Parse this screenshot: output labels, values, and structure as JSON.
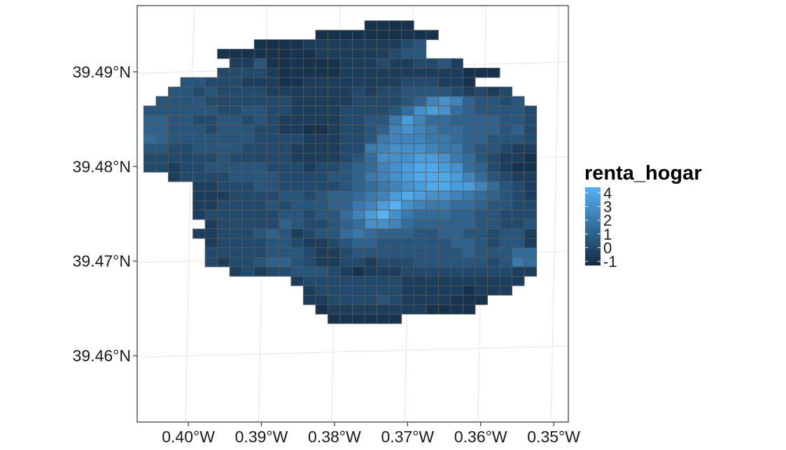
{
  "chart_data": {
    "type": "heatmap",
    "title": "",
    "xlabel": "",
    "ylabel": "",
    "x_ticks": [
      "0.40°W",
      "0.39°W",
      "0.38°W",
      "0.37°W",
      "0.36°W",
      "0.35°W"
    ],
    "x_tick_values": [
      -0.4,
      -0.39,
      -0.38,
      -0.37,
      -0.36,
      -0.35
    ],
    "y_ticks": [
      "39.46°N",
      "39.47°N",
      "39.48°N",
      "39.49°N"
    ],
    "y_tick_values": [
      39.46,
      39.47,
      39.48,
      39.49
    ],
    "xlim": [
      -0.407,
      -0.348
    ],
    "ylim": [
      39.453,
      39.497
    ],
    "grid": true,
    "legend": {
      "title": "renta_hogar",
      "position": "right",
      "labels": [
        "4",
        "3",
        "2",
        "1",
        "0",
        "-1"
      ],
      "values": [
        4,
        3,
        2,
        1,
        0,
        -1
      ],
      "range": [
        -1.3,
        4.4
      ],
      "color_low": "#132B43",
      "color_high": "#56B1F7"
    },
    "cell_border_color": "#5a5a5a",
    "grid_cells": {
      "cols": 32,
      "rows": 32,
      "x_origin": -0.4061,
      "y_top": 39.4954,
      "dx": 0.00168,
      "dy": 0.001,
      "values": [
        "..................-1,-1,-1,-1..........",
        "..............-1,-1,-1,-1,-1,-1,-1,-1,-1,-1...............",
        ".........-1,-1,-1,-1,-0.5,-0.5,-0.5,-0.5,-0.5,-0.5,-0.5,-0.5,0,0.5.........",
        "......-1,-1,-1,-1,-1,-1,-1,-1,-0.5,-0.5,-0.5,-0.5,-0.5,-0.5,0,0.5,0.5.........",
        ".......-0.5,-0.5,0.5,-1,-1,-1,-1,-1,-1,-0.5,-0.5,-0.5,0,-0.5,-0.5,0,0,0.5,-0.5.......",
        "......0,0,0,0,-0.5,-1,-1,-1,-1,-1,-0.5,-0.5,-0.5,-0.5,-0.5,-0.5,-0.5,-0.5,-0.5,-0.5,-1,-1,-1......",
        "...0.5,0.5,0,0,0,-0.5,-0.5,-0.5,-1,-1,-0.5,-0.5,-0.5,-0.5,-0.5,-0.5,-0.5,-0.5,0,0,0,-0.5,-0.5,-1......",
        "..0.5,0.5,0,0.5,0,0,0,0,-0.5,-0.5,-0.5,-0.5,-0.5,-0.5,-0.5,0,-0.5,0,0,0.5,0.5,0.5,0.5,0,-0.5,0,-0.5,0....",
        ".0.5,0.5,0.5,0.5,0,0,0,0,0,0,0,-0.5,-0.5,-0.5,-0.5,-0.5,0,0,0,0,0.5,1,2.5,3,2.5,1,0.5,0.5,0,0.5..",
        ".0.5,0.5,0.5,0.5,0.5,0.5,0,0,0.5,0.5,0,0,-0.5,-0.5,-0.5,-0.5,0,0,0,0,0.5,1.5,3,3.5,3,1.5,1,0.5,0.5,0.5,0.5,0",
        "..1,1,0.5,0.5,0,0,0.5,0.5,0,0.5,0,-0.5,-0.5,-0.5,-0.5,-0.5,0,0,0.5,0.5,2,3.5,2.5,1.5,1.5,1,1,1,1,0.5,0.5,0",
        "..1,1,0.5,0.5,0.5,0,0.5,0.5,0.5,0,0,-0.5,-0.5,-1,-1,-0.5,0,0,0.5,1,2.5,3,2.5,2,1.5,1.5,1,1,1,0.5,1,0",
        "..1.5,1,0.5,0.5,0.5,0.5,0.5,0.5,0.5,0,0,0,0,-0.5,-0.5,-0.5,0,0,0.5,2,2.5,2.5,2.5,2,2,1.5,1,1,0.5,0.5,0.5,0",
        "..0.5,0.5,0,0,0.5,0.5,0.5,0.5,0,0,0,0,-0.5,-0.5,-0.5,-0.5,0,0,2,2.5,3,3,3,2.5,2,2,1,0.5,0.5,0,-0.5,-0.5",
        "..0,0,0,0,0,0,0.5,0,0,0,0,0,-0.5,-0.5,-0.5,-0.5,0,0.5,1.5,3,3,3,3.5,3.5,3,2,1.5,0.5,0,-0.5,-0.5,-1",
        "..0,0,-0.5,0,0,0.5,0.5,0.5,0.5,0.5,0,0,0,-0.5,0,0,0.5,1,1.5,2.5,3,3.5,4,4,3.5,3,1.5,1,0,-0.5,-1,-1",
        "....-0.5,0,0,0,0,0.5,0.5,0.5,0.5,0,0,0,0,0.5,0.5,1,2,2.5,3,3.5,4,4,4,3.5,2.5,1.5,0.5,0,-0.5,-0.5..",
        ".....-0.5,-0.5,0,0,0,0.5,0.5,0,0,0,0,0,0.5,1,1.5,2,2.5,3,3.5,4,4,3.5,3.5,2.5,1.5,0.5,0,-0.5...",
        "......-0.5,-0.5,-0.5,0,0,0,0,0.5,0.5,0,0.5,1,1,1.5,2,2.5,3.5,4,3.5,3,3,2.5,2,1.5,1,0.5,0,-0.5...",
        "......-0.5,-0.5,0,0,0,0,0.5,0,0.5,0.5,0.5,1,1,2,2.5,3.5,4.5,3,2.5,2,2,1.5,1.5,1,0.5,0.5,0,0...",
        ".......-0.5,0,0,0,0,0,0,0.5,0.5,0,0.5,0.5,1.5,2.5,3.5,4.5,3,2,1.5,1.5,1.5,1,1,0.5,0.5,0,0,0....",
        "........-0.5,0,0,0,0,0,1,0.5,0,0,0.5,1,1.5,3,3,2.5,1.5,1,1,1,1,1,0.5,0.5,0,0,0.5....",
        "........-0.5,-0.5,0,0,0,0.5,1,0.5,-0.5,0,0.5,0.5,1.5,2,1.5,1,1,1,0.5,0.5,1,1,0.5,0.5,0,0.5,0.5,-0.5....",
        ".........-0.5,0,0,0,0,0.5,0.5,0,-0.5,-0.5,0,0.5,1,1,0.5,0.5,0.5,0.5,0.5,0.5,1,1,0.5,0,0.5,0.5,-0.5.....",
        "..........0,0,0,0,0,0.5,0.5,0.5,0,-0.5,-0.5,0,0.5,0.5,0.5,0.5,0.5,0.5,0.5,0.5,0.5,1,0.5,0.5,0.5,1.5,1.5......",
        "...........0,-0.5,0,0,0.5,1,1,0.5,0,-0.5,-0.5,0,0,-0.5,0,0,0,0.5,0.5,0.5,0.5,0.5,0.5,0,0.5,2,1.5.....",
        "...........-0.5,0,-0.5,0,0,0.5,0.5,0.5,0,-0.5,-1,-0.5,-0.5,-0.5,0,0,0,0,0,0,0,0,0,-0.5,-0.5..........",
        "............-0.5,0,0,0,0,0,0,0,0,-0.5,-0.5,-0.5,-0.5,-0.5,-0.5,-0.5,-0.5,-0.5,-0.5..........",
        ".............-0.5,0,0,0,0,0,0,0,-0.5,-0.5,-0.5,-0.5,-0.5,-1,-0.5,-0.5,-0.5...........",
        ".............-0.5,-0.5,0,0,0,0,0.5,0,-0.5,-0.5,-0.5,-0.5,-1,-1,-1...............",
        "..............-1,-0.5,-0.5,-0.5,-0.5,-0.5,-0.5,-0.5,-0.5,-1,-1,-1,-1...............",
        "...............-1,-1,-1,-1,-1,-1...................."
      ]
    }
  }
}
